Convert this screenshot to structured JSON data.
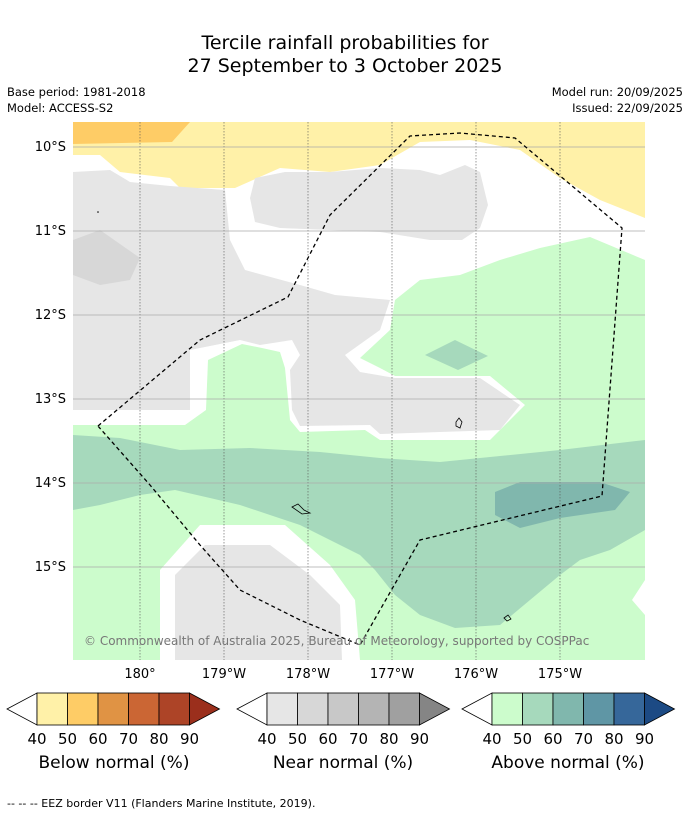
{
  "title": {
    "line1": "Tercile rainfall probabilities for",
    "line2": "27 September to 3 October 2025"
  },
  "meta": {
    "base_period": "Base period: 1981-2018",
    "model": "Model: ACCESS-S2",
    "model_run": "Model run: 20/09/2025",
    "issued": "Issued: 22/09/2025"
  },
  "map": {
    "lat_labels": [
      "10°S",
      "11°S",
      "12°S",
      "13°S",
      "14°S",
      "15°S"
    ],
    "lon_labels": [
      "180°",
      "179°W",
      "178°W",
      "177°W",
      "176°W",
      "175°W"
    ],
    "copyright": "© Commonwealth of Australia 2025, Bureau of Meteorology, supported by COSPPac"
  },
  "colorbars": [
    {
      "label": "Below normal (%)",
      "ticks": [
        "40",
        "50",
        "60",
        "70",
        "80",
        "90"
      ],
      "colors": [
        "#ffffff",
        "#fff1a8",
        "#fecc66",
        "#e09344",
        "#cb6634",
        "#ad4427",
        "#9b2f1c"
      ]
    },
    {
      "label": "Near normal (%)",
      "ticks": [
        "40",
        "50",
        "60",
        "70",
        "80",
        "90"
      ],
      "colors": [
        "#ffffff",
        "#e6e6e6",
        "#d7d7d7",
        "#c8c8c8",
        "#b4b4b4",
        "#a0a0a0",
        "#858585"
      ]
    },
    {
      "label": "Above normal (%)",
      "ticks": [
        "40",
        "50",
        "60",
        "70",
        "80",
        "90"
      ],
      "colors": [
        "#ffffff",
        "#ccfccc",
        "#a6d9bc",
        "#80b7ad",
        "#5f96a5",
        "#36679a",
        "#1c4a84"
      ]
    }
  ],
  "footnote": "--  --  -- EEZ border V11 (Flanders Marine Institute, 2019)."
}
